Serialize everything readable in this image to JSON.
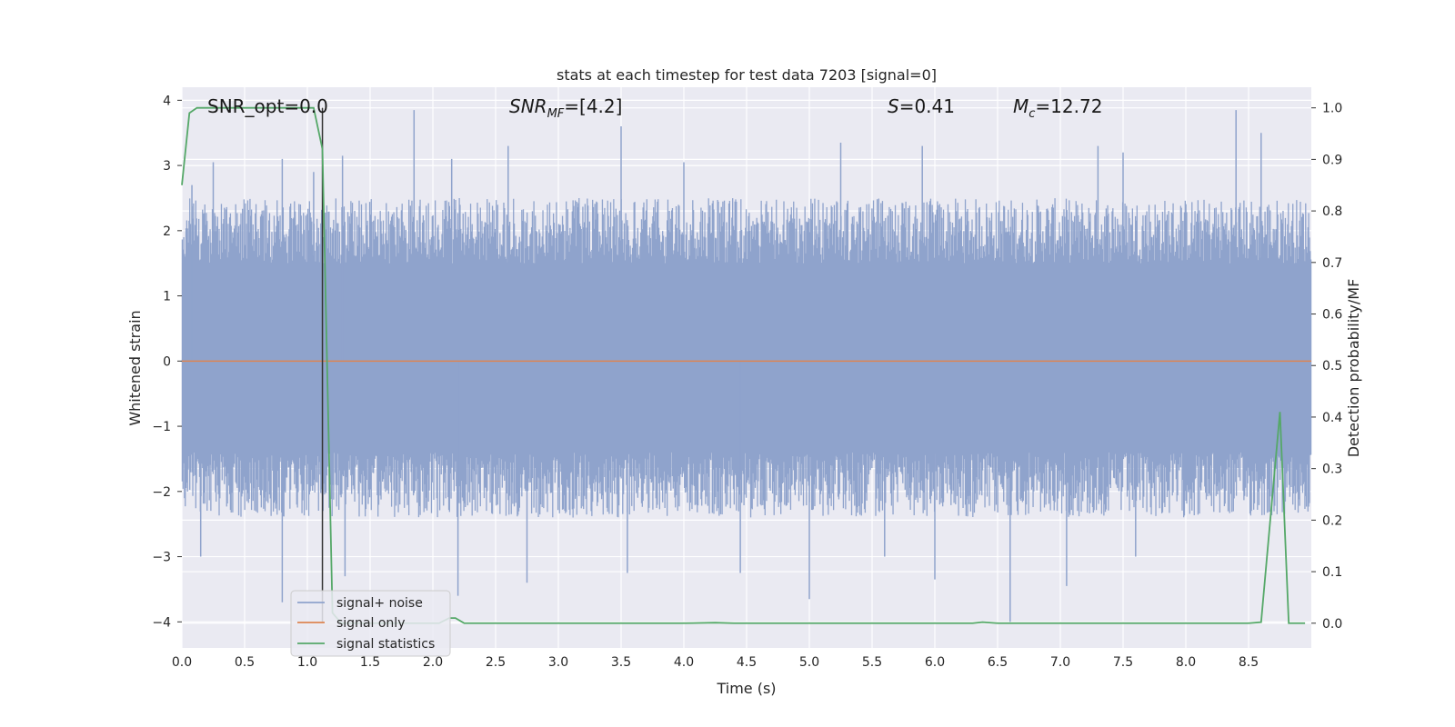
{
  "chart_data": {
    "type": "line",
    "title": "stats at each timestep for test data 7203 [signal=0]",
    "xlabel": "Time (s)",
    "ylabel": "Whitened strain",
    "ylabel_right": "Detection probability/MF",
    "xlim": [
      0.0,
      9.0
    ],
    "ylim": [
      -4.4,
      4.2
    ],
    "ylim_right": [
      -0.048,
      1.04
    ],
    "x_ticks": [
      "0.0",
      "0.5",
      "1.0",
      "1.5",
      "2.0",
      "2.5",
      "3.0",
      "3.5",
      "4.0",
      "4.5",
      "5.0",
      "5.5",
      "6.0",
      "6.5",
      "7.0",
      "7.5",
      "8.0",
      "8.5"
    ],
    "y_ticks": [
      "−4",
      "−3",
      "−2",
      "−1",
      "0",
      "1",
      "2",
      "3",
      "4"
    ],
    "y_ticks_right": [
      "0.0",
      "0.1",
      "0.2",
      "0.3",
      "0.4",
      "0.5",
      "0.6",
      "0.7",
      "0.8",
      "0.9",
      "1.0"
    ],
    "grid": true,
    "legend_position": "bottom-left",
    "vertical_marker_x": 1.12,
    "annotations": {
      "snr_opt": "SNR_opt=0.0",
      "snr_mf_pre": "SNR",
      "snr_mf_sub": "MF",
      "snr_mf_val": "=[4.2]",
      "s_sym": "S",
      "s_val": "=0.41",
      "mc_sym": "M",
      "mc_sub": "c",
      "mc_val": "=12.72"
    },
    "series": [
      {
        "name": "signal+ noise",
        "color": "#8fa3cc",
        "description_values": "dense noise band, approx ±1.8 with spikes to ±3.5",
        "spikes_up": [
          [
            0.08,
            2.7
          ],
          [
            0.25,
            3.05
          ],
          [
            0.8,
            3.1
          ],
          [
            1.05,
            2.9
          ],
          [
            1.28,
            3.15
          ],
          [
            1.85,
            3.85
          ],
          [
            2.15,
            3.1
          ],
          [
            2.6,
            3.3
          ],
          [
            3.5,
            3.6
          ],
          [
            4.0,
            3.05
          ],
          [
            5.25,
            3.35
          ],
          [
            5.9,
            3.3
          ],
          [
            7.3,
            3.3
          ],
          [
            7.5,
            3.2
          ],
          [
            8.4,
            3.85
          ],
          [
            8.6,
            3.5
          ]
        ],
        "spikes_down": [
          [
            0.15,
            -3.0
          ],
          [
            0.8,
            -3.7
          ],
          [
            1.3,
            -3.3
          ],
          [
            2.2,
            -3.6
          ],
          [
            2.75,
            -3.4
          ],
          [
            3.55,
            -3.25
          ],
          [
            4.45,
            -3.25
          ],
          [
            5.0,
            -3.65
          ],
          [
            5.6,
            -3.0
          ],
          [
            6.0,
            -3.35
          ],
          [
            6.6,
            -4.0
          ],
          [
            7.05,
            -3.45
          ],
          [
            7.6,
            -3.0
          ]
        ]
      },
      {
        "name": "signal only",
        "color": "#dd8452",
        "x": [
          0.0,
          9.0
        ],
        "y": [
          0.0,
          0.0
        ]
      },
      {
        "name": "signal statistics",
        "color": "#55a868",
        "axis": "right",
        "x": [
          0.0,
          0.06,
          0.12,
          0.2,
          0.6,
          1.0,
          1.05,
          1.12,
          1.2,
          1.27,
          1.4,
          2.0,
          2.05,
          2.13,
          2.18,
          2.25,
          4.0,
          4.25,
          4.4,
          6.3,
          6.38,
          6.5,
          8.5,
          8.6,
          8.75,
          8.82,
          8.95
        ],
        "y": [
          0.85,
          0.99,
          1.0,
          1.0,
          1.0,
          1.0,
          1.0,
          0.92,
          0.02,
          0.0,
          0.0,
          0.0,
          0.0,
          0.01,
          0.01,
          0.0,
          0.0,
          0.001,
          0.0,
          0.0,
          0.002,
          0.0,
          0.0,
          0.002,
          0.41,
          0.0,
          0.0
        ]
      }
    ]
  }
}
